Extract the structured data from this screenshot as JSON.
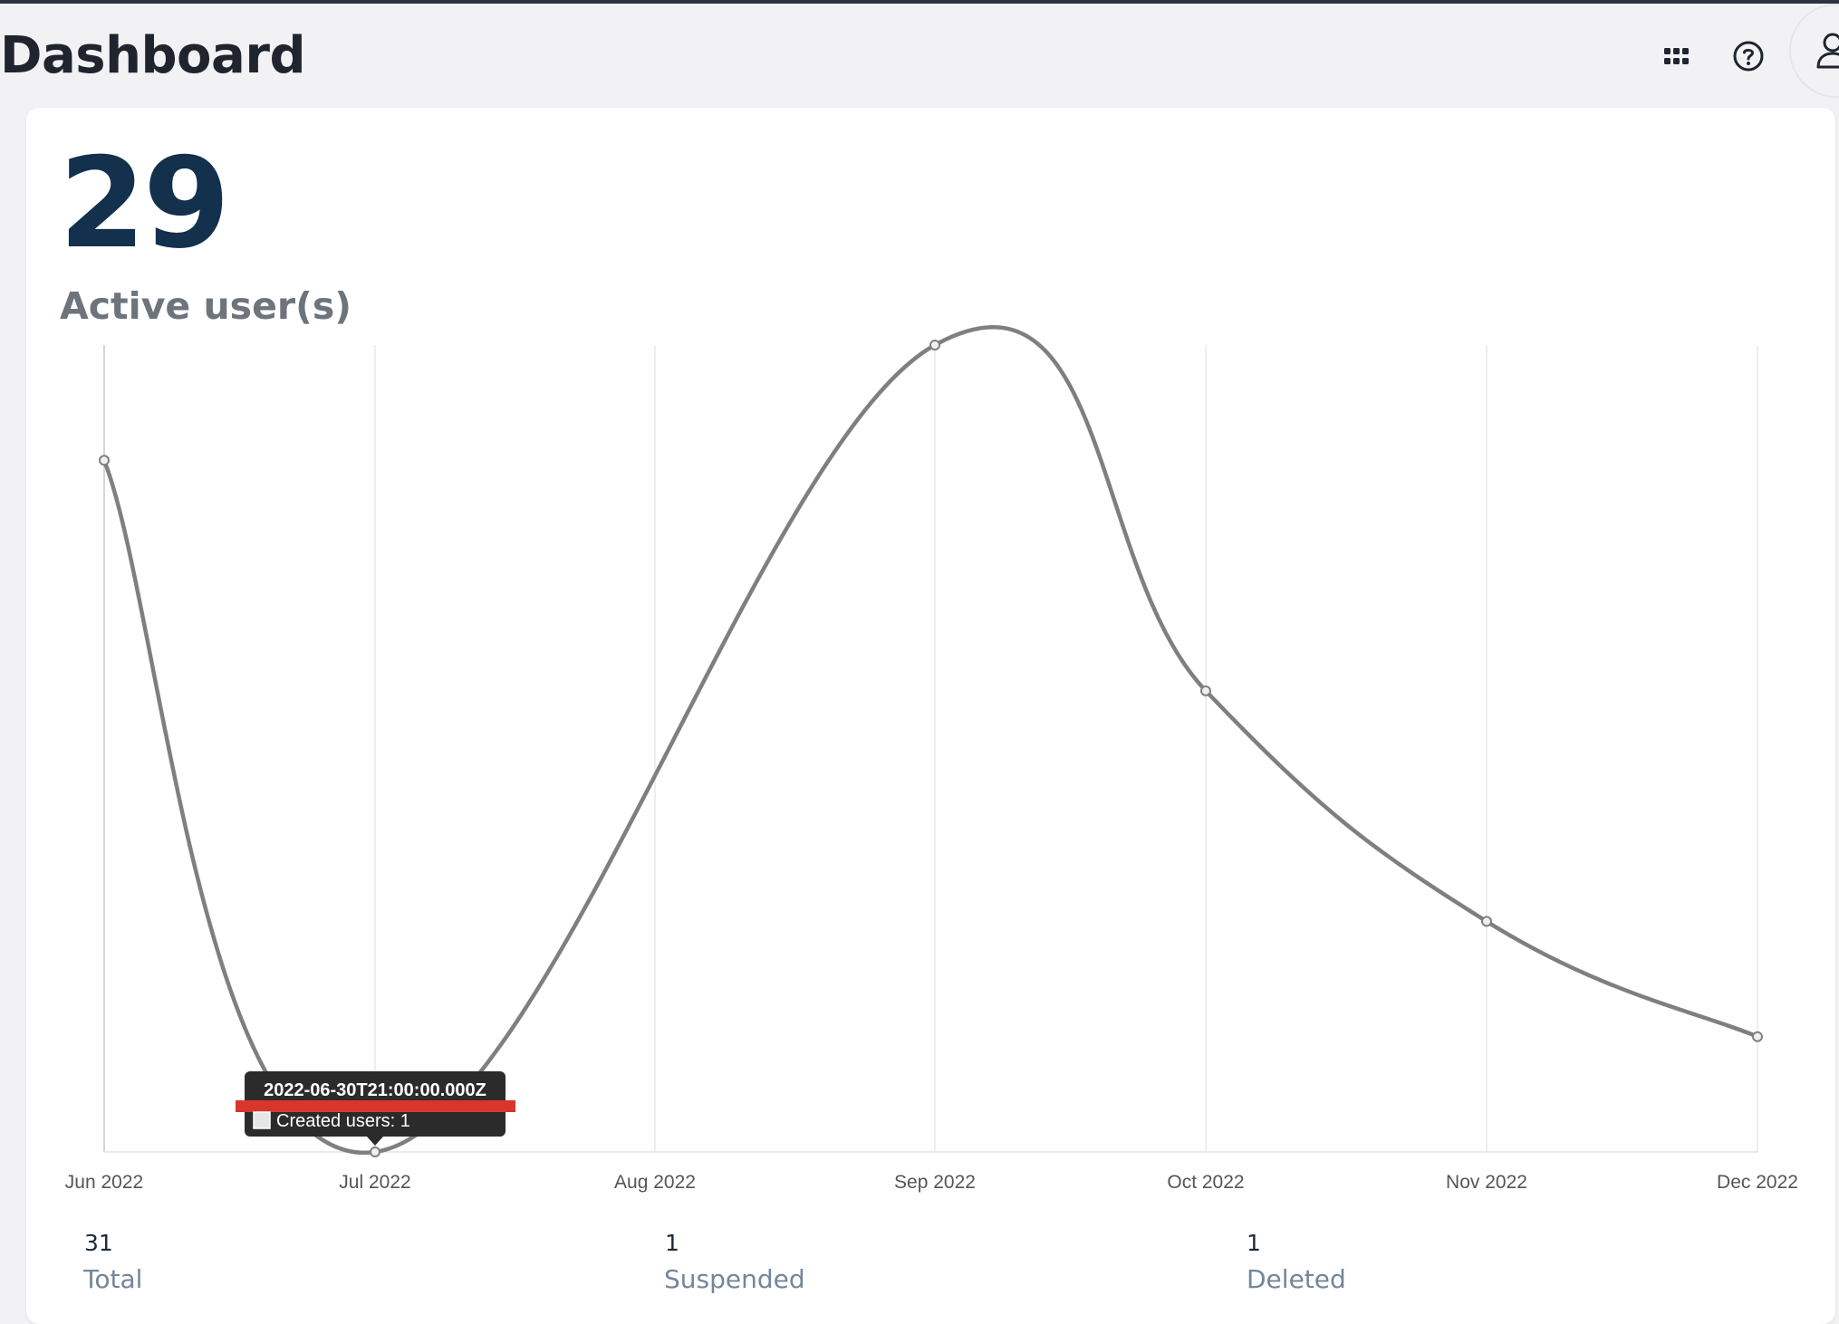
{
  "header": {
    "title": "Dashboard",
    "icons": [
      "apps-grid-icon",
      "help-icon",
      "user-icon"
    ]
  },
  "summary": {
    "active_count": "29",
    "active_label": "Active user(s)"
  },
  "chart_data": {
    "type": "line",
    "categories": [
      "Jun 2022",
      "Jul 2022",
      "Aug 2022",
      "Sep 2022",
      "Oct 2022",
      "Nov 2022",
      "Dec 2022"
    ],
    "series": [
      {
        "name": "Created users",
        "values": [
          7,
          1,
          null,
          8,
          5,
          3,
          2
        ]
      }
    ],
    "ylim": [
      1,
      8
    ],
    "grid": true,
    "line_color": "#7f7f7f",
    "tooltip": {
      "title": "2022-06-30T21:00:00.000Z",
      "label": "Created users: 1"
    }
  },
  "stats": [
    {
      "value": "31",
      "label": "Total"
    },
    {
      "value": "1",
      "label": "Suspended"
    },
    {
      "value": "1",
      "label": "Deleted"
    }
  ],
  "colors": {
    "title": "#1f242e",
    "big_number": "#13304d",
    "stat_label": "#73869b",
    "tooltip_bg": "#2b2b2b",
    "highlight": "#d9362b"
  }
}
